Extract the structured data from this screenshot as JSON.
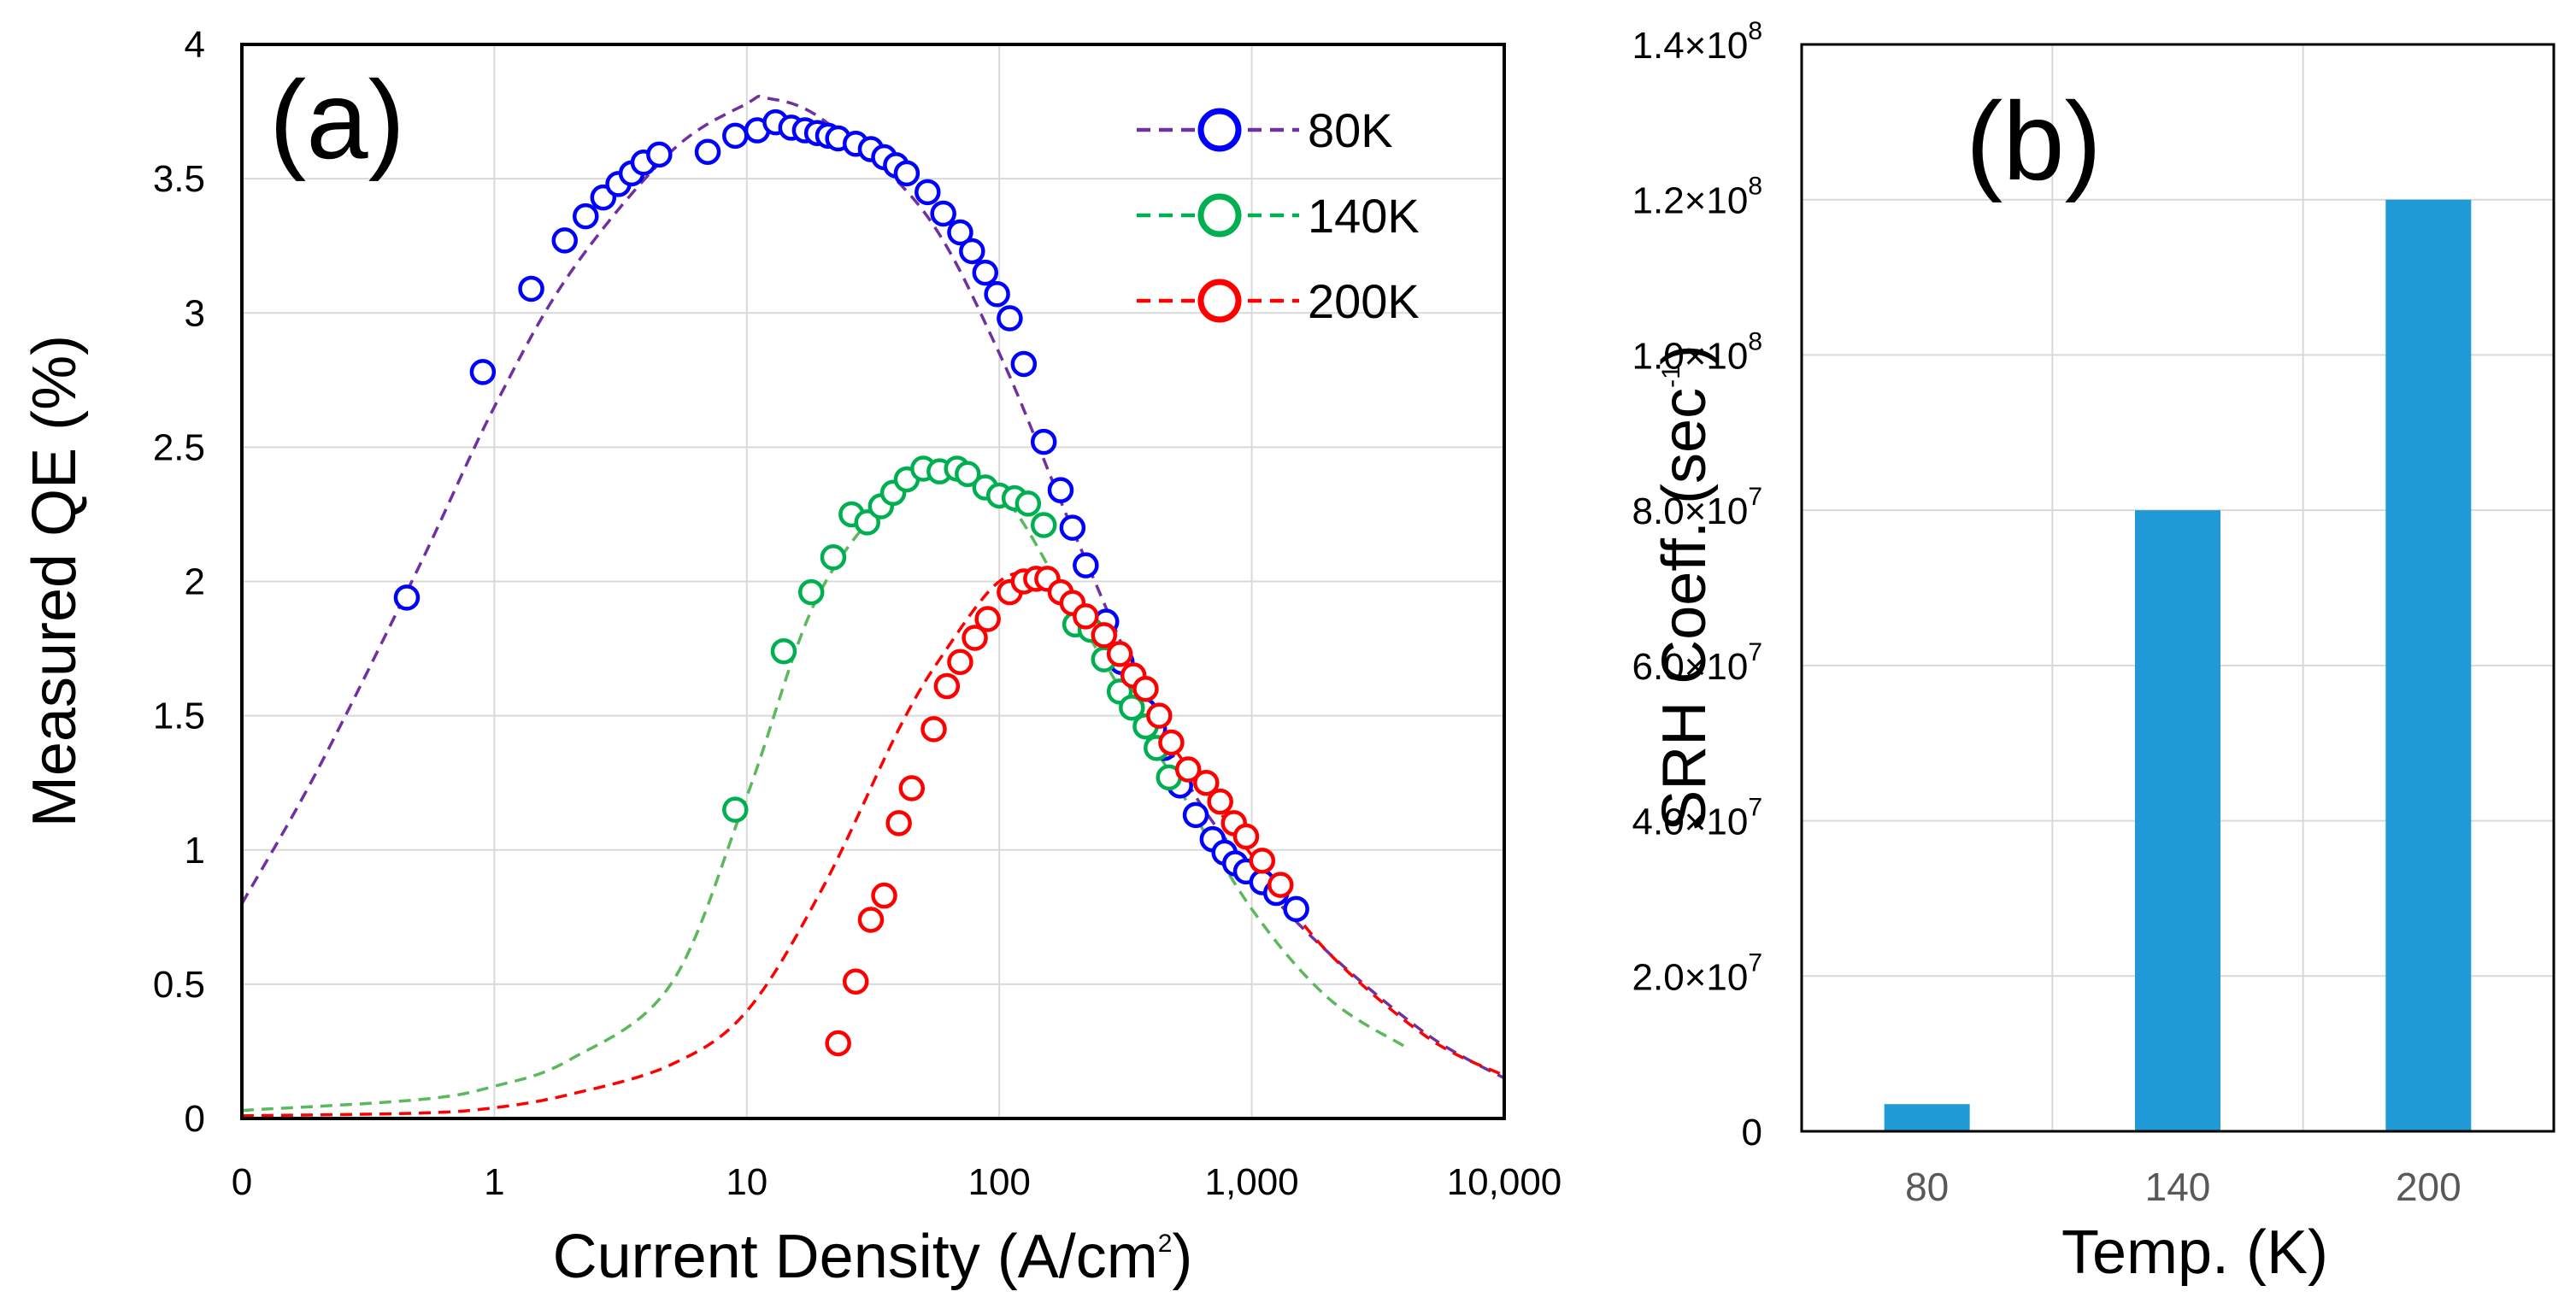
{
  "chart_data": [
    {
      "panel_label": "(a)",
      "type": "scatter",
      "xscale": "log",
      "xlim": [
        0.1,
        10000
      ],
      "ylim": [
        0,
        4
      ],
      "xlabel": "Current Density (A/cm",
      "xlabel_sup": "2",
      "xlabel_end": ")",
      "ylabel": "Measured QE (%)",
      "x_ticks": [
        {
          "value": 0.1,
          "label": "0"
        },
        {
          "value": 1,
          "label": "1"
        },
        {
          "value": 10,
          "label": "10"
        },
        {
          "value": 100,
          "label": "100"
        },
        {
          "value": 1000,
          "label": "1,000"
        },
        {
          "value": 10000,
          "label": "10,000"
        }
      ],
      "y_ticks": [
        {
          "value": 0,
          "label": "0"
        },
        {
          "value": 0.5,
          "label": "0.5"
        },
        {
          "value": 1,
          "label": "1"
        },
        {
          "value": 1.5,
          "label": "1.5"
        },
        {
          "value": 2,
          "label": "2"
        },
        {
          "value": 2.5,
          "label": "2.5"
        },
        {
          "value": 3,
          "label": "3"
        },
        {
          "value": 3.5,
          "label": "3.5"
        },
        {
          "value": 4,
          "label": "4"
        }
      ],
      "grid": true,
      "legend_position": "top-right",
      "series": [
        {
          "name": "80K",
          "color": "#0000ff",
          "fit_color": "#7030a0",
          "points": [
            [
              0.45,
              1.94
            ],
            [
              0.9,
              2.78
            ],
            [
              1.4,
              3.09
            ],
            [
              1.9,
              3.27
            ],
            [
              2.3,
              3.36
            ],
            [
              2.7,
              3.43
            ],
            [
              3.1,
              3.48
            ],
            [
              3.5,
              3.52
            ],
            [
              3.9,
              3.56
            ],
            [
              4.5,
              3.59
            ],
            [
              7,
              3.6
            ],
            [
              9,
              3.66
            ],
            [
              11,
              3.68
            ],
            [
              13,
              3.71
            ],
            [
              15,
              3.69
            ],
            [
              17,
              3.68
            ],
            [
              19,
              3.67
            ],
            [
              21,
              3.66
            ],
            [
              23,
              3.65
            ],
            [
              27,
              3.63
            ],
            [
              31,
              3.61
            ],
            [
              35,
              3.58
            ],
            [
              39,
              3.55
            ],
            [
              43,
              3.52
            ],
            [
              52,
              3.45
            ],
            [
              60,
              3.37
            ],
            [
              70,
              3.3
            ],
            [
              78,
              3.23
            ],
            [
              88,
              3.15
            ],
            [
              98,
              3.07
            ],
            [
              110,
              2.98
            ],
            [
              125,
              2.81
            ],
            [
              150,
              2.52
            ],
            [
              175,
              2.34
            ],
            [
              195,
              2.2
            ],
            [
              220,
              2.06
            ],
            [
              265,
              1.85
            ],
            [
              305,
              1.7
            ],
            [
              340,
              1.6
            ],
            [
              375,
              1.52
            ],
            [
              410,
              1.45
            ],
            [
              450,
              1.38
            ],
            [
              520,
              1.24
            ],
            [
              600,
              1.13
            ],
            [
              700,
              1.04
            ],
            [
              780,
              0.99
            ],
            [
              860,
              0.95
            ],
            [
              950,
              0.92
            ],
            [
              1100,
              0.88
            ],
            [
              1250,
              0.84
            ],
            [
              1500,
              0.78
            ]
          ],
          "fit": [
            [
              0.1,
              0.8
            ],
            [
              0.2,
              1.3
            ],
            [
              0.5,
              2.05
            ],
            [
              1,
              2.65
            ],
            [
              2,
              3.15
            ],
            [
              5,
              3.6
            ],
            [
              10,
              3.78
            ],
            [
              12,
              3.8
            ],
            [
              20,
              3.72
            ],
            [
              50,
              3.38
            ],
            [
              100,
              2.85
            ],
            [
              200,
              2.17
            ],
            [
              500,
              1.33
            ],
            [
              1000,
              0.92
            ],
            [
              2000,
              0.62
            ],
            [
              5000,
              0.31
            ],
            [
              10000,
              0.15
            ]
          ]
        },
        {
          "name": "140K",
          "color": "#00b050",
          "fit_color": "#5cb85c",
          "points": [
            [
              9,
              1.15
            ],
            [
              14,
              1.74
            ],
            [
              18,
              1.96
            ],
            [
              22,
              2.09
            ],
            [
              26,
              2.25
            ],
            [
              30,
              2.22
            ],
            [
              34,
              2.28
            ],
            [
              38,
              2.33
            ],
            [
              43,
              2.38
            ],
            [
              50,
              2.42
            ],
            [
              58,
              2.41
            ],
            [
              68,
              2.42
            ],
            [
              75,
              2.4
            ],
            [
              88,
              2.35
            ],
            [
              100,
              2.32
            ],
            [
              115,
              2.31
            ],
            [
              130,
              2.29
            ],
            [
              150,
              2.21
            ],
            [
              200,
              1.84
            ],
            [
              230,
              1.82
            ],
            [
              260,
              1.71
            ],
            [
              300,
              1.59
            ],
            [
              335,
              1.53
            ],
            [
              380,
              1.46
            ],
            [
              420,
              1.38
            ],
            [
              470,
              1.27
            ]
          ],
          "fit": [
            [
              0.1,
              0.03
            ],
            [
              0.5,
              0.07
            ],
            [
              1,
              0.12
            ],
            [
              2,
              0.22
            ],
            [
              5,
              0.5
            ],
            [
              10,
              1.2
            ],
            [
              20,
              1.98
            ],
            [
              50,
              2.4
            ],
            [
              100,
              2.33
            ],
            [
              200,
              1.88
            ],
            [
              500,
              1.25
            ],
            [
              1000,
              0.78
            ],
            [
              2000,
              0.45
            ],
            [
              4000,
              0.27
            ]
          ]
        },
        {
          "name": "200K",
          "color": "#ff0000",
          "fit_color": "#ff0000",
          "points": [
            [
              23,
              0.28
            ],
            [
              27,
              0.51
            ],
            [
              31,
              0.74
            ],
            [
              35,
              0.83
            ],
            [
              40,
              1.1
            ],
            [
              45,
              1.23
            ],
            [
              55,
              1.45
            ],
            [
              62,
              1.61
            ],
            [
              70,
              1.7
            ],
            [
              80,
              1.79
            ],
            [
              90,
              1.86
            ],
            [
              110,
              1.96
            ],
            [
              125,
              2.0
            ],
            [
              140,
              2.01
            ],
            [
              155,
              2.01
            ],
            [
              175,
              1.96
            ],
            [
              195,
              1.92
            ],
            [
              220,
              1.87
            ],
            [
              260,
              1.8
            ],
            [
              300,
              1.73
            ],
            [
              340,
              1.65
            ],
            [
              380,
              1.6
            ],
            [
              430,
              1.5
            ],
            [
              480,
              1.4
            ],
            [
              560,
              1.3
            ],
            [
              660,
              1.25
            ],
            [
              750,
              1.18
            ],
            [
              850,
              1.1
            ],
            [
              950,
              1.05
            ],
            [
              1100,
              0.96
            ],
            [
              1300,
              0.87
            ]
          ],
          "fit": [
            [
              0.1,
              0.01
            ],
            [
              0.5,
              0.02
            ],
            [
              1,
              0.04
            ],
            [
              2,
              0.09
            ],
            [
              5,
              0.2
            ],
            [
              10,
              0.4
            ],
            [
              20,
              0.86
            ],
            [
              40,
              1.45
            ],
            [
              60,
              1.73
            ],
            [
              100,
              2.0
            ],
            [
              150,
              2.02
            ],
            [
              200,
              1.9
            ],
            [
              500,
              1.37
            ],
            [
              1000,
              0.98
            ],
            [
              2000,
              0.62
            ],
            [
              5000,
              0.3
            ],
            [
              10000,
              0.16
            ]
          ]
        }
      ]
    },
    {
      "panel_label": "(b)",
      "type": "bar",
      "categories": [
        "80",
        "140",
        "200"
      ],
      "values": [
        3500000,
        80000000,
        120000000
      ],
      "color": "#1f9ad6",
      "ylim": [
        0,
        140000000
      ],
      "xlabel": "Temp. (K)",
      "ylabel": "SRH Coeff. (sec",
      "ylabel_sup": "-1",
      "ylabel_end": ")",
      "y_ticks": [
        {
          "value": 0,
          "label": "0"
        },
        {
          "value": 20000000,
          "label": "2.0×10",
          "exp": "7"
        },
        {
          "value": 40000000,
          "label": "4.0×10",
          "exp": "7"
        },
        {
          "value": 60000000,
          "label": "6.0×10",
          "exp": "7"
        },
        {
          "value": 80000000,
          "label": "8.0×10",
          "exp": "7"
        },
        {
          "value": 100000000,
          "label": "1.0×10",
          "exp": "8"
        },
        {
          "value": 120000000,
          "label": "1.2×10",
          "exp": "8"
        },
        {
          "value": 140000000,
          "label": "1.4×10",
          "exp": "8"
        }
      ],
      "grid": true
    }
  ]
}
